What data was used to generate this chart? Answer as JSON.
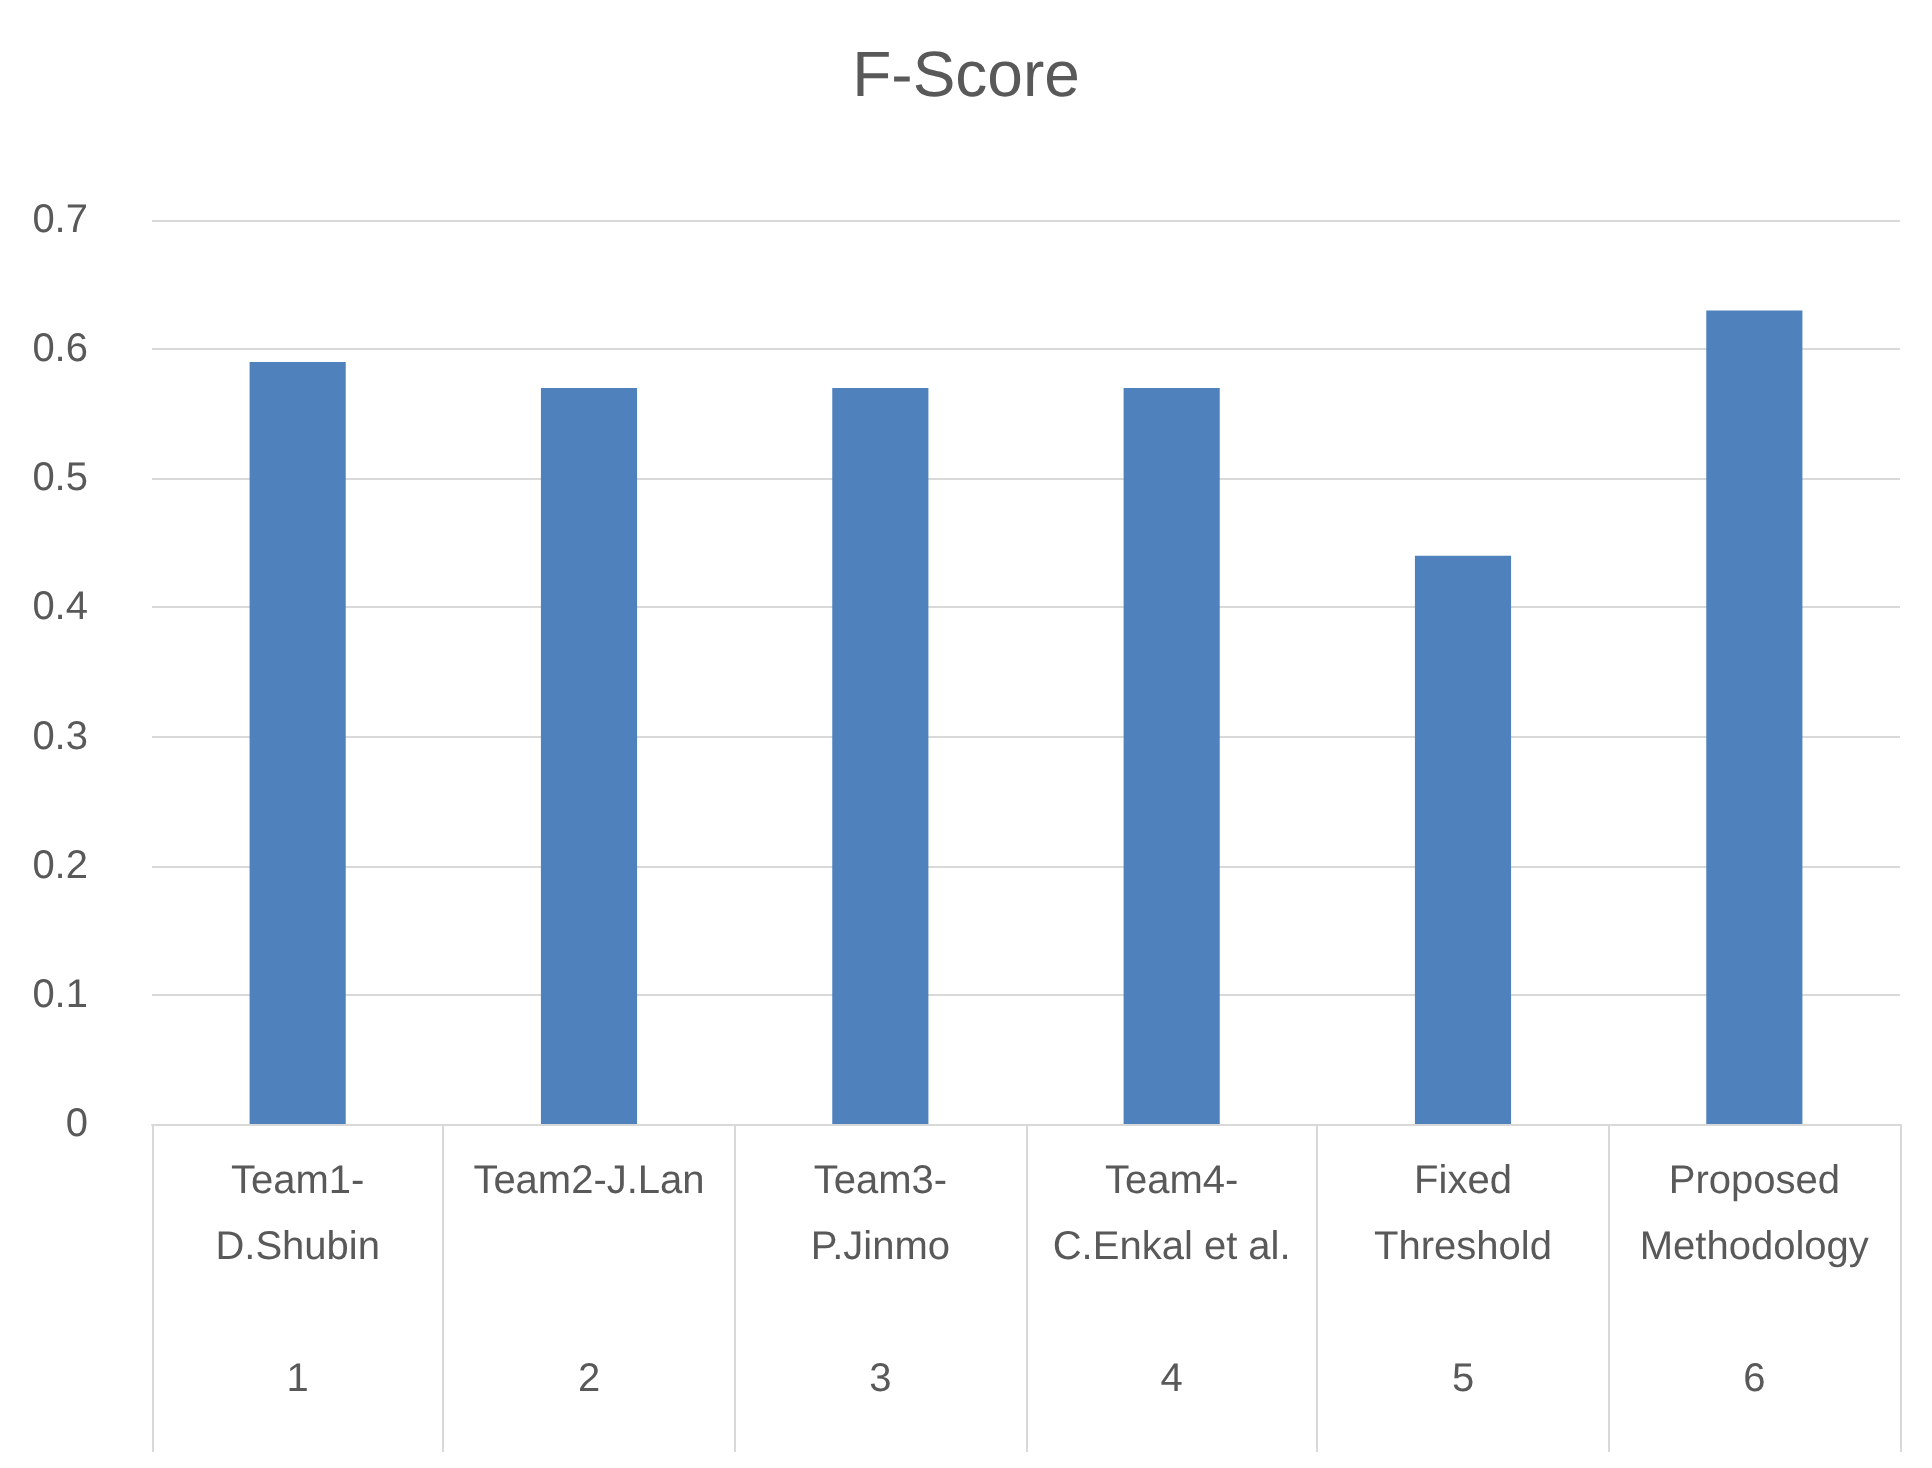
{
  "chart_data": {
    "type": "bar",
    "title": "F-Score",
    "categories": [
      "Team1-\nD.Shubin\n\n1",
      "Team2-J.Lan\n\n\n2",
      "Team3-\nP.Jinmo\n\n3",
      "Team4-\nC.Enkal et al.\n\n4",
      "Fixed\nThreshold\n\n5",
      "Proposed\nMethodology\n\n6"
    ],
    "values": [
      0.59,
      0.57,
      0.57,
      0.57,
      0.44,
      0.63
    ],
    "color": "#4f81bd",
    "ylim": [
      0,
      0.7
    ],
    "yticks": [
      0,
      0.1,
      0.2,
      0.3,
      0.4,
      0.5,
      0.6,
      0.7
    ],
    "grid": "y"
  }
}
